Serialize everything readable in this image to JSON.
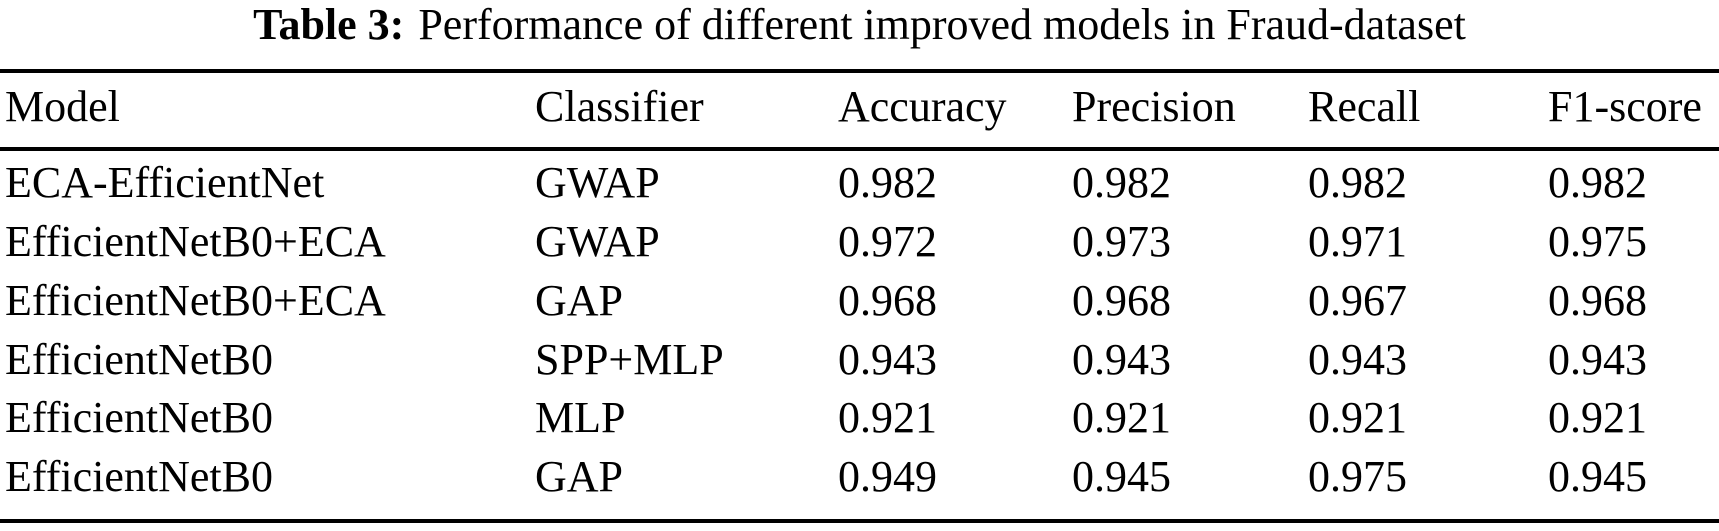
{
  "caption": {
    "label": "Table 3:",
    "text": "Performance of different improved models in Fraud-dataset"
  },
  "columns": [
    "Model",
    "Classifier",
    "Accuracy",
    "Precision",
    "Recall",
    "F1-score"
  ],
  "rows": [
    [
      "ECA-EfficientNet",
      "GWAP",
      "0.982",
      "0.982",
      "0.982",
      "0.982"
    ],
    [
      "EfficientNetB0+ECA",
      "GWAP",
      "0.972",
      "0.973",
      "0.971",
      "0.975"
    ],
    [
      "EfficientNetB0+ECA",
      "GAP",
      "0.968",
      "0.968",
      "0.967",
      "0.968"
    ],
    [
      "EfficientNetB0",
      "SPP+MLP",
      "0.943",
      "0.943",
      "0.943",
      "0.943"
    ],
    [
      "EfficientNetB0",
      "MLP",
      "0.921",
      "0.921",
      "0.921",
      "0.921"
    ],
    [
      "EfficientNetB0",
      "GAP",
      "0.949",
      "0.945",
      "0.975",
      "0.945"
    ]
  ],
  "colors": {
    "text": "#000000",
    "background": "#ffffff",
    "rule": "#000000"
  }
}
